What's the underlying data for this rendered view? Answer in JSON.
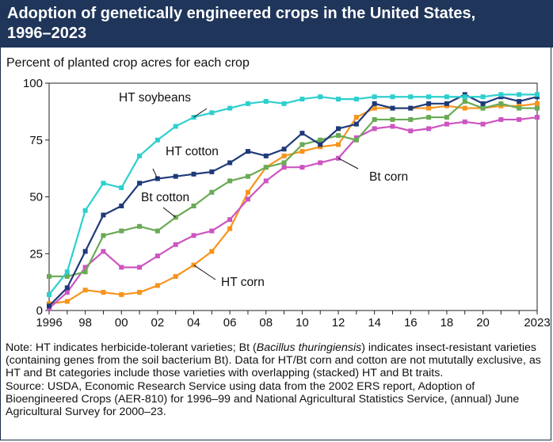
{
  "header": {
    "title": "Adoption of genetically engineered crops in the United States,\n1996–2023"
  },
  "subtitle": "Percent of planted crop acres for each crop",
  "notes": {
    "note_prefix": "Note: HT indicates herbicide-tolerant varieties; Bt (",
    "note_italic": "Bacillus thuringiensis",
    "note_suffix": ") indicates insect-resistant varieties (containing genes from the soil bacterium Bt). Data for HT/Bt corn and cotton are not mututally exclusive, as HT and Bt categories include those varieties with overlapping (stacked) HT and Bt traits.",
    "source": "Source: USDA, Economic Research Service using data from the 2002 ERS report, Adoption of Bioengineered Crops (AER-810) for 1996–99 and National Agricultural Statistics Service, (annual) June Agricultural Survey for 2000–23."
  },
  "chart_data": {
    "type": "line",
    "ylabel": "Percent of planted crop acres for each crop",
    "xlim": [
      1996,
      2023
    ],
    "ylim": [
      0,
      100
    ],
    "grid": false,
    "x": [
      1996,
      1997,
      1998,
      1999,
      2000,
      2001,
      2002,
      2003,
      2004,
      2005,
      2006,
      2007,
      2008,
      2009,
      2010,
      2011,
      2012,
      2013,
      2014,
      2015,
      2016,
      2017,
      2018,
      2019,
      2020,
      2021,
      2022,
      2023
    ],
    "x_tick_labels": [
      {
        "x": 1996,
        "label": "1996"
      },
      {
        "x": 1998,
        "label": "98"
      },
      {
        "x": 2000,
        "label": "00"
      },
      {
        "x": 2002,
        "label": "02"
      },
      {
        "x": 2004,
        "label": "04"
      },
      {
        "x": 2006,
        "label": "06"
      },
      {
        "x": 2008,
        "label": "08"
      },
      {
        "x": 2010,
        "label": "10"
      },
      {
        "x": 2012,
        "label": "12"
      },
      {
        "x": 2014,
        "label": "14"
      },
      {
        "x": 2016,
        "label": "16"
      },
      {
        "x": 2018,
        "label": "18"
      },
      {
        "x": 2020,
        "label": "20"
      },
      {
        "x": 2023,
        "label": "2023"
      }
    ],
    "y_ticks": [
      0,
      25,
      50,
      75,
      100
    ],
    "series": [
      {
        "name": "HT soybeans",
        "color": "#2ecfcf",
        "marker": "square",
        "values": [
          7,
          17,
          44,
          56,
          54,
          68,
          75,
          81,
          85,
          87,
          89,
          91,
          92,
          91,
          93,
          94,
          93,
          93,
          94,
          94,
          94,
          94,
          94,
          94,
          94,
          95,
          95,
          95
        ]
      },
      {
        "name": "HT cotton",
        "color": "#1f3a7a",
        "marker": "square",
        "values": [
          2,
          10,
          26,
          42,
          46,
          56,
          58,
          59,
          60,
          61,
          65,
          70,
          68,
          71,
          78,
          73,
          80,
          82,
          91,
          89,
          89,
          91,
          91,
          95,
          91,
          94,
          92,
          94
        ]
      },
      {
        "name": "Bt cotton",
        "color": "#6aaa55",
        "marker": "square",
        "values": [
          15,
          15,
          17,
          33,
          35,
          37,
          35,
          41,
          46,
          52,
          57,
          59,
          63,
          65,
          73,
          75,
          77,
          75,
          84,
          84,
          84,
          85,
          85,
          92,
          89,
          91,
          89,
          89
        ]
      },
      {
        "name": "Bt corn",
        "color": "#cc55c0",
        "marker": "square",
        "values": [
          1,
          8,
          19,
          26,
          19,
          19,
          24,
          29,
          33,
          35,
          40,
          49,
          57,
          63,
          63,
          65,
          67,
          76,
          80,
          81,
          79,
          80,
          82,
          83,
          82,
          84,
          84,
          85
        ]
      },
      {
        "name": "HT corn",
        "color": "#f7941d",
        "marker": "square",
        "values": [
          3,
          4,
          9,
          8,
          7,
          8,
          11,
          15,
          20,
          26,
          36,
          52,
          63,
          68,
          70,
          72,
          73,
          85,
          89,
          89,
          89,
          89,
          90,
          89,
          89,
          90,
          90,
          91
        ]
      }
    ],
    "annotations": [
      {
        "text": "HT soybeans",
        "series": "HT soybeans"
      },
      {
        "text": "HT cotton",
        "series": "HT cotton"
      },
      {
        "text": "Bt cotton",
        "series": "Bt cotton"
      },
      {
        "text": "Bt corn",
        "series": "Bt corn"
      },
      {
        "text": "HT corn",
        "series": "HT corn"
      }
    ]
  }
}
